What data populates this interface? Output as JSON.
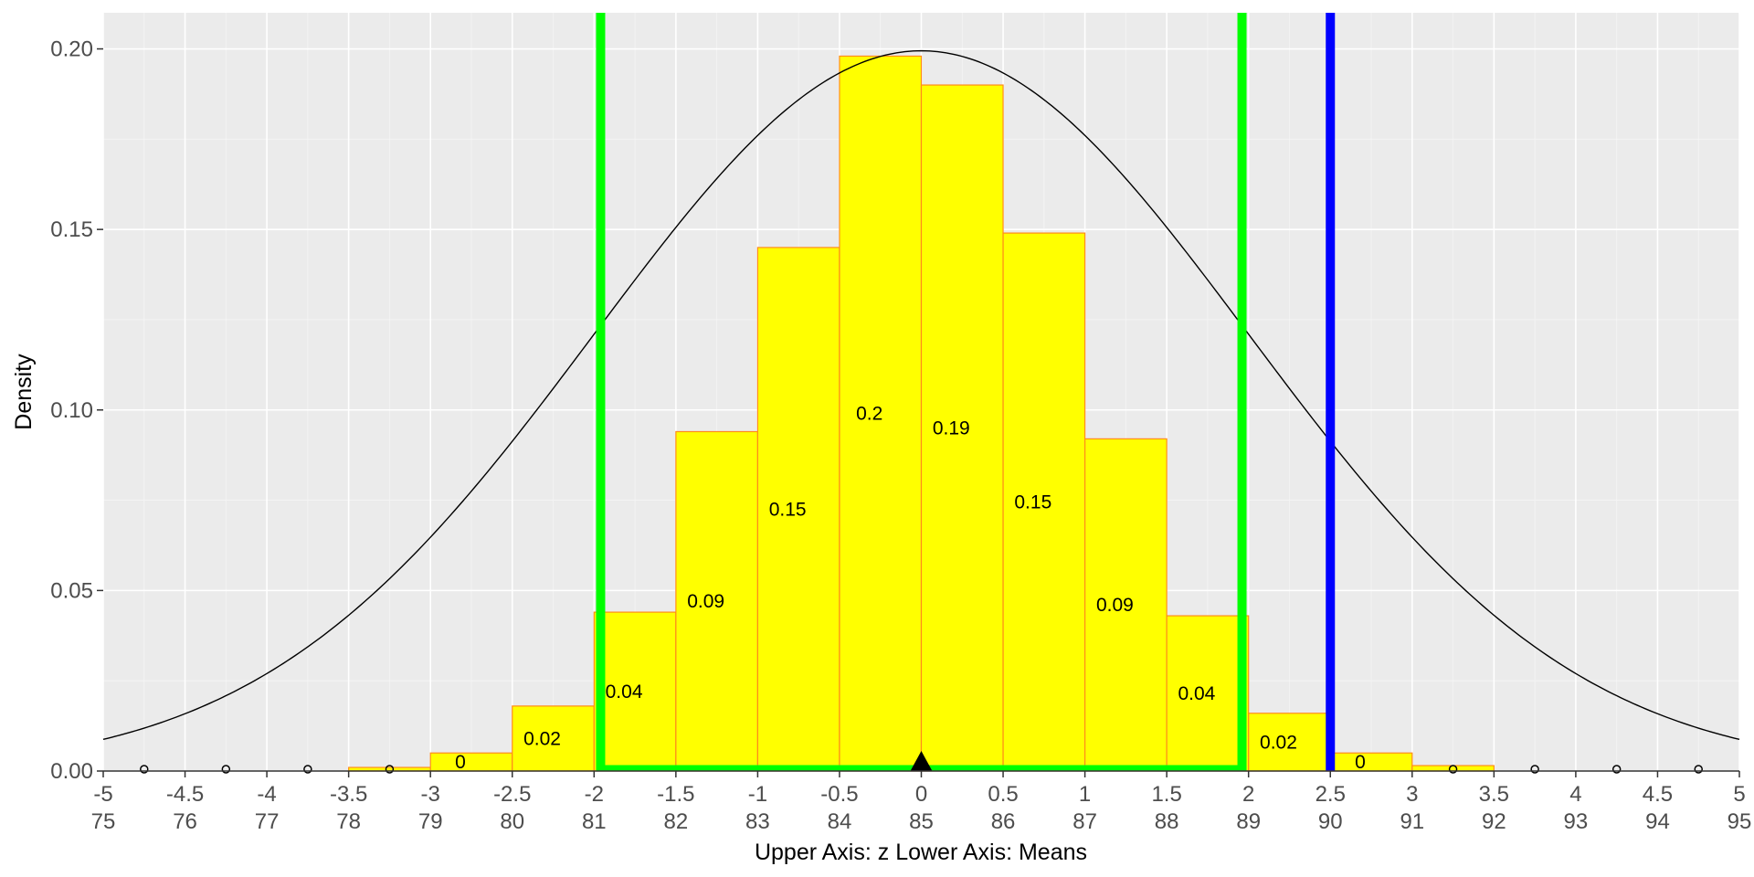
{
  "chart_data": {
    "type": "bar",
    "xlabel": "Upper Axis: z Lower Axis:  Means",
    "ylabel": "Density",
    "ylim": [
      0,
      0.21
    ],
    "grid": true,
    "panel_background": "#ebebeb",
    "upper_axis": {
      "range": [
        -5,
        5
      ],
      "ticks": [
        "-5",
        "-4.5",
        "-4",
        "-3.5",
        "-3",
        "-2.5",
        "-2",
        "-1.5",
        "-1",
        "-0.5",
        "0",
        "0.5",
        "1",
        "1.5",
        "2",
        "2.5",
        "3",
        "3.5",
        "4",
        "4.5",
        "5"
      ]
    },
    "lower_axis": {
      "ticks": [
        "75",
        "76",
        "77",
        "78",
        "79",
        "80",
        "81",
        "82",
        "83",
        "84",
        "85",
        "86",
        "87",
        "88",
        "89",
        "90",
        "91",
        "92",
        "93",
        "94",
        "95"
      ]
    },
    "y_ticks": [
      "0.00",
      "0.05",
      "0.10",
      "0.15",
      "0.20"
    ],
    "bars": [
      {
        "start": -3.5,
        "end": -3.0,
        "value": 0.001,
        "label": ""
      },
      {
        "start": -3.0,
        "end": -2.5,
        "value": 0.005,
        "label": "0"
      },
      {
        "start": -2.5,
        "end": -2.0,
        "value": 0.018,
        "label": "0.02"
      },
      {
        "start": -2.0,
        "end": -1.5,
        "value": 0.044,
        "label": "0.04"
      },
      {
        "start": -1.5,
        "end": -1.0,
        "value": 0.094,
        "label": "0.09"
      },
      {
        "start": -1.0,
        "end": -0.5,
        "value": 0.145,
        "label": "0.15"
      },
      {
        "start": -0.5,
        "end": 0.0,
        "value": 0.198,
        "label": "0.2"
      },
      {
        "start": 0.0,
        "end": 0.5,
        "value": 0.19,
        "label": "0.19"
      },
      {
        "start": 0.5,
        "end": 1.0,
        "value": 0.149,
        "label": "0.15"
      },
      {
        "start": 1.0,
        "end": 1.5,
        "value": 0.092,
        "label": "0.09"
      },
      {
        "start": 1.5,
        "end": 2.0,
        "value": 0.043,
        "label": "0.04"
      },
      {
        "start": 2.0,
        "end": 2.5,
        "value": 0.016,
        "label": "0.02"
      },
      {
        "start": 2.5,
        "end": 3.0,
        "value": 0.005,
        "label": "0"
      },
      {
        "start": 3.0,
        "end": 3.5,
        "value": 0.0015,
        "label": ""
      }
    ],
    "bar_fill": "#ffff00",
    "bar_outline": "#ff8c1a",
    "density_curve": {
      "type": "normal",
      "mean": 0,
      "sd": 2,
      "color": "#000000"
    },
    "critical_lines": {
      "values": [
        -1.96,
        1.96
      ],
      "color": "#00ff00"
    },
    "observed_line": {
      "value": 2.5,
      "color": "#0000ff"
    },
    "mean_marker": {
      "value": 0,
      "color": "#000000"
    },
    "zero_markers": [
      -4.75,
      -4.25,
      -3.75,
      -3.25,
      3.25,
      3.75,
      4.25,
      4.75
    ]
  }
}
